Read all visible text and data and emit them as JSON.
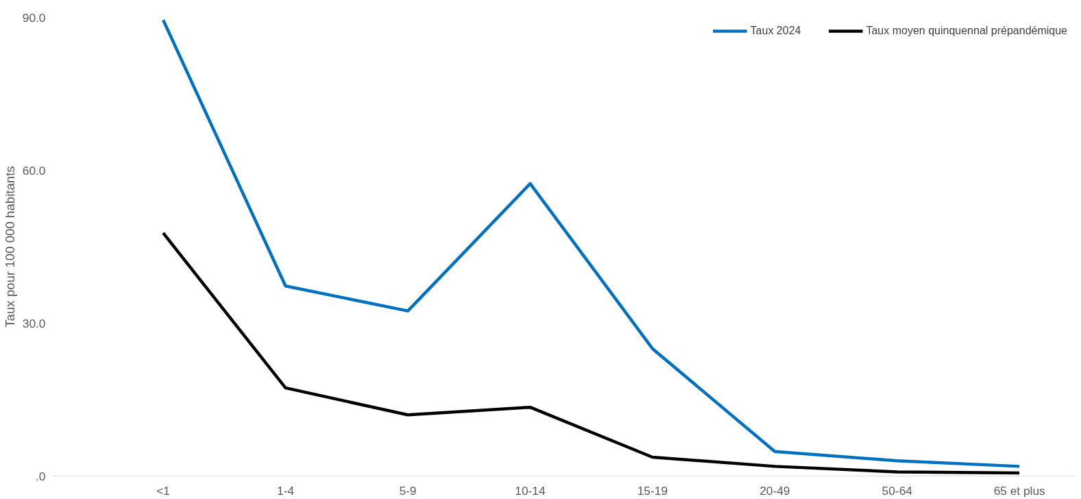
{
  "chart_data": {
    "type": "line",
    "ylabel": "Taux pour 100 000 habitants",
    "categories": [
      "<1",
      "1-4",
      "5-9",
      "10-14",
      "15-19",
      "20-49",
      "50-64",
      "65 et plus"
    ],
    "series": [
      {
        "name": "Taux 2024",
        "color": "#0070c0",
        "values": [
          89.5,
          37.3,
          32.4,
          57.4,
          25.0,
          4.8,
          3.0,
          1.9
        ]
      },
      {
        "name": "Taux moyen quinquennal prépandémique",
        "color": "#000000",
        "values": [
          47.7,
          17.3,
          12.0,
          13.5,
          3.7,
          1.9,
          0.8,
          0.6
        ]
      }
    ],
    "ylim": [
      0,
      90
    ],
    "yticks": [
      {
        "value": 0,
        "label": ".0"
      },
      {
        "value": 30,
        "label": "30.0"
      },
      {
        "value": 60,
        "label": "60.0"
      },
      {
        "value": 90,
        "label": "90.0"
      }
    ],
    "grid": false,
    "legend": "top right",
    "marker": "none",
    "line_style": "solid"
  }
}
